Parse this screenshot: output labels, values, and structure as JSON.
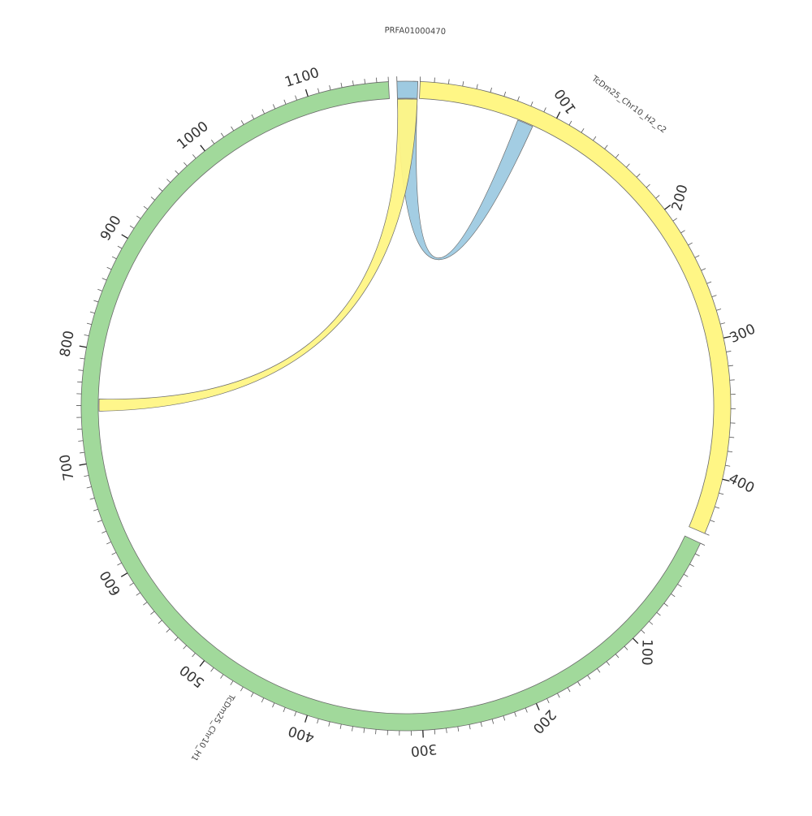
{
  "diagram": {
    "type": "circos",
    "tick_step": 10,
    "label_step": 100,
    "sequences": [
      {
        "id": "PRFA01000470",
        "label": "PRFA01000470",
        "length": 5,
        "color": "#9ecae1",
        "tick_labels": []
      },
      {
        "id": "H2",
        "label": "TcDm25_Chr10_H2_c2",
        "length": 440,
        "color": "#fff685",
        "tick_labels": [
          "100",
          "200",
          "300",
          "400"
        ]
      },
      {
        "id": "H1",
        "label": "TcDm25_Chr10_H1",
        "length": 1170,
        "color": "#a1d99b",
        "tick_labels": [
          "100",
          "200",
          "300",
          "400",
          "500",
          "600",
          "700",
          "800",
          "900",
          "1000",
          "1100"
        ]
      }
    ],
    "links": [
      {
        "from": "PRFA01000470",
        "from_range": [
          0,
          5
        ],
        "to": "H2",
        "to_range": [
          75,
          87
        ],
        "color": "#9ecae1"
      },
      {
        "from": "PRFA01000470",
        "from_range": [
          0,
          5
        ],
        "to": "H1",
        "to_range": [
          745,
          756
        ],
        "color": "#fff685"
      }
    ]
  }
}
